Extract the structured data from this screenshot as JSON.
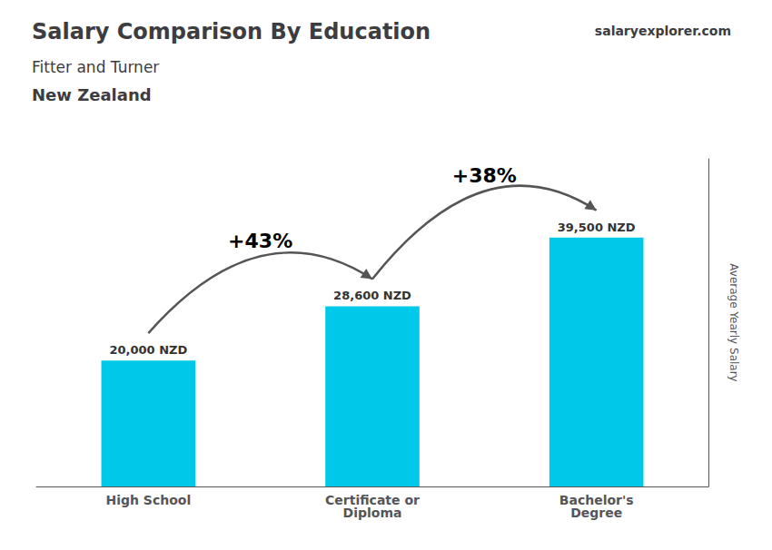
{
  "chart_data": {
    "type": "bar",
    "title": "Salary Comparison By Education",
    "subtitle": [
      "Fitter and Turner",
      "New Zealand"
    ],
    "annotations": [
      "+43%",
      "+38%",
      "salaryexplorer.com"
    ],
    "ylabel": "Average Yearly Salary",
    "categories": [
      "High School",
      "Certificate or\nDiploma",
      "Bachelor's\nDegree"
    ],
    "values": [
      20000,
      28600,
      39500
    ],
    "value_labels": [
      "20,000 NZD",
      "28,600 NZD",
      "39,500 NZD"
    ],
    "color": "#00c8e8",
    "ylim": [
      0,
      52000
    ],
    "yticks": [],
    "tick_labels": "x",
    "grid": false,
    "data_labels": true
  }
}
